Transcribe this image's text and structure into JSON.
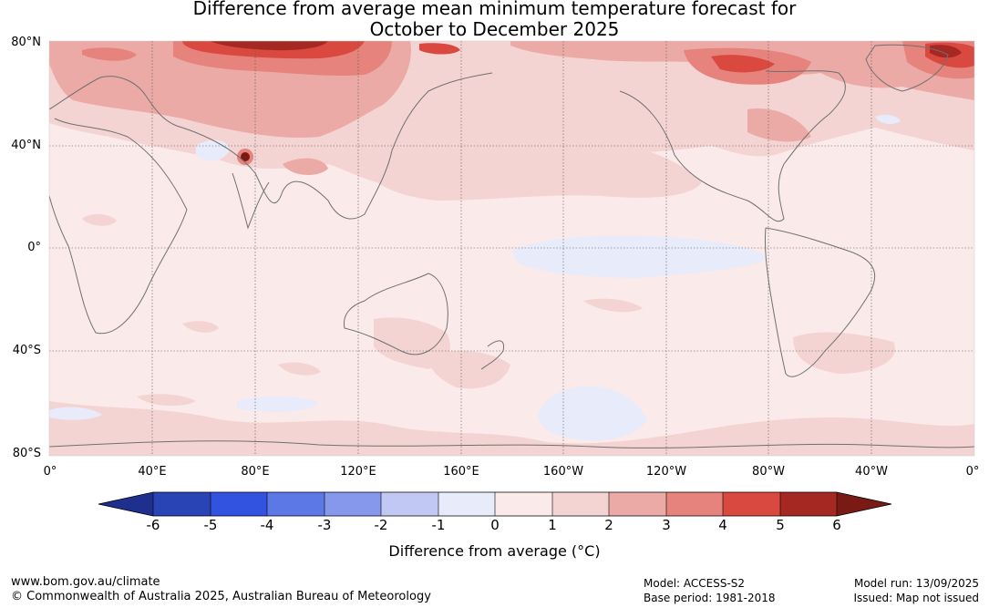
{
  "title": {
    "line1": "Difference from average mean minimum temperature forecast for",
    "line2": "October to December 2025"
  },
  "map": {
    "lat_labels": [
      "80°N",
      "40°N",
      "0°",
      "40°S",
      "80°S"
    ],
    "lon_labels": [
      "0°",
      "40°E",
      "80°E",
      "120°E",
      "160°E",
      "160°W",
      "120°W",
      "80°W",
      "40°W",
      "0°"
    ],
    "colors": {
      "neg6": "#1f2f8e",
      "neg5": "#2844b5",
      "neg4": "#3252e0",
      "neg3": "#5c77e6",
      "neg2": "#8598ec",
      "neg1": "#c0c8f3",
      "zero_neg": "#e8ebfa",
      "pos0": "#fbeaea",
      "pos1": "#f4d4d2",
      "pos2": "#ebaaa6",
      "pos3": "#e5837c",
      "pos4": "#d9493f",
      "pos5": "#a52922",
      "pos6": "#7a1a15",
      "coast": "#707070",
      "grid": "#555555"
    }
  },
  "colorbar": {
    "tick_labels": [
      "-6",
      "-5",
      "-4",
      "-3",
      "-2",
      "-1",
      "0",
      "1",
      "2",
      "3",
      "4",
      "5",
      "6"
    ],
    "label": "Difference from average (°C)"
  },
  "footer": {
    "website": "www.bom.gov.au/climate",
    "copyright": "© Commonwealth of Australia 2025, Australian Bureau of Meteorology",
    "model": "Model: ACCESS-S2",
    "base_period": "Base period: 1981-2018",
    "model_run": "Model run: 13/09/2025",
    "issued": "Issued: Map not issued"
  }
}
